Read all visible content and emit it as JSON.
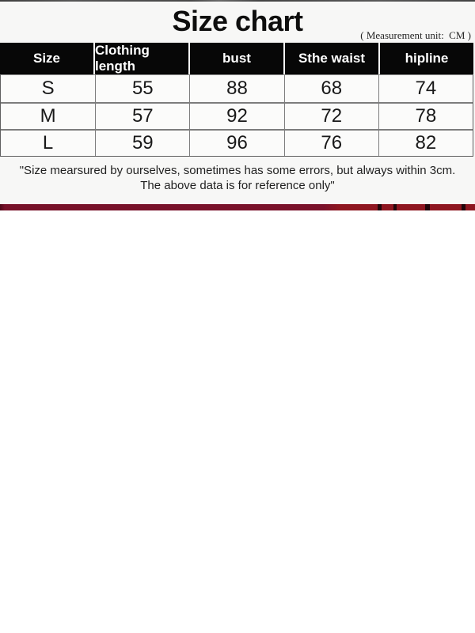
{
  "chart_data": {
    "type": "table",
    "title": "Size chart",
    "unit": "CM",
    "unit_note": "( Measurement unit:  CM )",
    "columns": [
      "Size",
      "Clothing length",
      "bust",
      "Sthe waist",
      "hipline"
    ],
    "rows": [
      [
        "S",
        55,
        88,
        68,
        74
      ],
      [
        "M",
        57,
        92,
        72,
        78
      ],
      [
        "L",
        59,
        96,
        76,
        82
      ]
    ],
    "footnote_line1": "\"Size mearsured by ourselves, sometimes has some errors, but always within 3cm.",
    "footnote_line2": "The above data is for reference only\""
  },
  "colors": {
    "table_header_bg": "#070707",
    "table_header_text": "#ffffff",
    "panel_bg": "#f7f7f6",
    "grid_line": "#7d7d7d",
    "accent_strip_left": "#7a112a",
    "accent_strip_right": "#8e1620",
    "top_rule": "#4c4c4c"
  }
}
